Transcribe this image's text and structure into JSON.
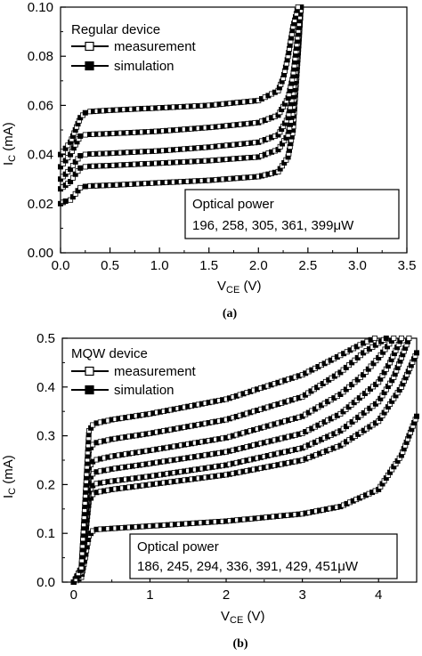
{
  "chart_data": [
    {
      "type": "line",
      "panel_label": "(a)",
      "xlabel_main": "V",
      "xlabel_sub": "CE",
      "xlabel_unit": " (V)",
      "ylabel_main": "I",
      "ylabel_sub": "C",
      "ylabel_unit": " (mA)",
      "xlim": [
        0,
        3.5
      ],
      "ylim": [
        0,
        0.1
      ],
      "xticks": [
        "0.0",
        "0.5",
        "1.0",
        "1.5",
        "2.0",
        "2.5",
        "3.0",
        "3.5"
      ],
      "yticks": [
        "0.00",
        "0.02",
        "0.04",
        "0.06",
        "0.08",
        "0.10"
      ],
      "legend_title": "Regular device",
      "legend_entries": [
        "measurement",
        "simulation"
      ],
      "legend_position": "top-left",
      "annotation_title": "Optical power",
      "annotation_values": "196, 258, 305, 361, 399μW",
      "curves": [
        {
          "x": [
            0.0,
            0.05,
            0.1,
            0.15,
            0.2,
            0.25,
            0.3,
            0.5,
            1.0,
            1.5,
            2.0,
            2.2,
            2.3,
            2.35,
            2.4,
            2.43
          ],
          "y": [
            0.02,
            0.021,
            0.0215,
            0.024,
            0.0265,
            0.027,
            0.0272,
            0.0275,
            0.0285,
            0.0295,
            0.031,
            0.033,
            0.039,
            0.05,
            0.08,
            0.1
          ]
        },
        {
          "x": [
            0.0,
            0.05,
            0.1,
            0.15,
            0.2,
            0.25,
            0.3,
            0.5,
            1.0,
            1.5,
            2.0,
            2.2,
            2.3,
            2.35,
            2.4,
            2.43
          ],
          "y": [
            0.026,
            0.0275,
            0.029,
            0.032,
            0.0345,
            0.035,
            0.0352,
            0.0355,
            0.0365,
            0.0375,
            0.039,
            0.042,
            0.048,
            0.058,
            0.082,
            0.1
          ]
        },
        {
          "x": [
            0.0,
            0.05,
            0.1,
            0.15,
            0.2,
            0.25,
            0.3,
            0.5,
            1.0,
            1.5,
            2.0,
            2.2,
            2.3,
            2.35,
            2.4,
            2.43
          ],
          "y": [
            0.03,
            0.032,
            0.034,
            0.037,
            0.0395,
            0.04,
            0.0402,
            0.0405,
            0.0415,
            0.043,
            0.045,
            0.048,
            0.055,
            0.065,
            0.085,
            0.1
          ]
        },
        {
          "x": [
            0.0,
            0.05,
            0.1,
            0.15,
            0.2,
            0.25,
            0.3,
            0.5,
            1.0,
            1.5,
            2.0,
            2.2,
            2.3,
            2.35,
            2.4,
            2.43
          ],
          "y": [
            0.035,
            0.0375,
            0.04,
            0.044,
            0.0475,
            0.048,
            0.0482,
            0.0485,
            0.0495,
            0.051,
            0.053,
            0.056,
            0.063,
            0.072,
            0.089,
            0.1
          ]
        },
        {
          "x": [
            0.0,
            0.05,
            0.1,
            0.15,
            0.2,
            0.25,
            0.3,
            0.5,
            1.0,
            1.5,
            2.0,
            2.2,
            2.25,
            2.3,
            2.35,
            2.4
          ],
          "y": [
            0.04,
            0.0425,
            0.045,
            0.05,
            0.055,
            0.057,
            0.0575,
            0.058,
            0.059,
            0.06,
            0.062,
            0.066,
            0.071,
            0.08,
            0.092,
            0.1
          ]
        }
      ]
    },
    {
      "type": "line",
      "panel_label": "(b)",
      "xlabel_main": "V",
      "xlabel_sub": "CE",
      "xlabel_unit": " (V)",
      "ylabel_main": "I",
      "ylabel_sub": "C",
      "ylabel_unit": " (mA)",
      "xlim": [
        -0.15,
        4.5
      ],
      "ylim": [
        0,
        0.5
      ],
      "xticks": [
        "0",
        "1",
        "2",
        "3",
        "4"
      ],
      "yticks": [
        "0.0",
        "0.1",
        "0.2",
        "0.3",
        "0.4",
        "0.5"
      ],
      "legend_title": "MQW device",
      "legend_entries": [
        "measurement",
        "simulation"
      ],
      "legend_position": "top-left",
      "annotation_title": "Optical power",
      "annotation_values": "186, 245, 294, 336, 391, 429, 451μW",
      "curves": [
        {
          "x": [
            0.0,
            0.1,
            0.15,
            0.2,
            0.25,
            0.3,
            0.5,
            1.0,
            2.0,
            3.0,
            3.5,
            4.0,
            4.3,
            4.5
          ],
          "y": [
            0.0,
            0.01,
            0.05,
            0.095,
            0.105,
            0.108,
            0.11,
            0.115,
            0.125,
            0.14,
            0.155,
            0.19,
            0.26,
            0.34
          ]
        },
        {
          "x": [
            0.0,
            0.1,
            0.15,
            0.2,
            0.25,
            0.3,
            0.5,
            1.0,
            2.0,
            3.0,
            3.5,
            4.0,
            4.3,
            4.5
          ],
          "y": [
            0.0,
            0.02,
            0.09,
            0.165,
            0.18,
            0.184,
            0.19,
            0.2,
            0.22,
            0.25,
            0.28,
            0.33,
            0.4,
            0.47
          ]
        },
        {
          "x": [
            0.0,
            0.1,
            0.15,
            0.2,
            0.25,
            0.3,
            0.5,
            1.0,
            2.0,
            3.0,
            3.5,
            4.0,
            4.2,
            4.4
          ],
          "y": [
            0.0,
            0.02,
            0.1,
            0.185,
            0.198,
            0.202,
            0.207,
            0.217,
            0.24,
            0.275,
            0.31,
            0.37,
            0.42,
            0.5
          ]
        },
        {
          "x": [
            0.0,
            0.1,
            0.15,
            0.2,
            0.25,
            0.3,
            0.5,
            1.0,
            2.0,
            3.0,
            3.5,
            4.0,
            4.15,
            4.3
          ],
          "y": [
            0.0,
            0.02,
            0.12,
            0.21,
            0.222,
            0.226,
            0.232,
            0.243,
            0.267,
            0.305,
            0.345,
            0.41,
            0.45,
            0.5
          ]
        },
        {
          "x": [
            0.0,
            0.1,
            0.15,
            0.2,
            0.25,
            0.3,
            0.5,
            1.0,
            2.0,
            3.0,
            3.5,
            3.8,
            4.0,
            4.2
          ],
          "y": [
            0.0,
            0.025,
            0.13,
            0.235,
            0.247,
            0.251,
            0.258,
            0.27,
            0.296,
            0.34,
            0.385,
            0.425,
            0.46,
            0.5
          ]
        },
        {
          "x": [
            0.0,
            0.1,
            0.15,
            0.2,
            0.25,
            0.3,
            0.5,
            1.0,
            2.0,
            3.0,
            3.5,
            3.8,
            4.0,
            4.1
          ],
          "y": [
            0.0,
            0.025,
            0.15,
            0.27,
            0.282,
            0.286,
            0.293,
            0.305,
            0.333,
            0.38,
            0.43,
            0.47,
            0.49,
            0.5
          ]
        },
        {
          "x": [
            0.0,
            0.1,
            0.15,
            0.2,
            0.25,
            0.3,
            0.5,
            1.0,
            2.0,
            3.0,
            3.5,
            3.8,
            3.95
          ],
          "y": [
            0.0,
            0.03,
            0.17,
            0.31,
            0.322,
            0.326,
            0.333,
            0.345,
            0.375,
            0.425,
            0.465,
            0.49,
            0.5
          ]
        }
      ]
    }
  ]
}
